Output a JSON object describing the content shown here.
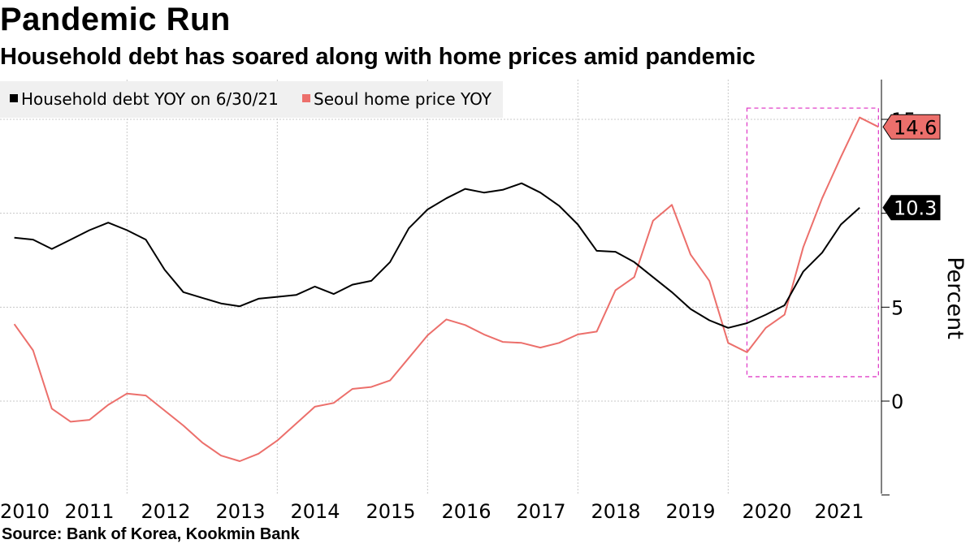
{
  "header": {
    "title": "Pandemic Run",
    "subtitle": "Household debt has soared along with home prices amid pandemic"
  },
  "footer": {
    "source": "Source: Bank of Korea, Kookmin Bank"
  },
  "colors": {
    "debt": "#000000",
    "seoul": "#ec6f6b",
    "highlight": "#e040c8",
    "grid": "#c8c8c8",
    "legend_bg": "#f0f0f0"
  },
  "chart_data": {
    "type": "line",
    "title": "Pandemic Run",
    "subtitle": "Household debt has soared along with home prices amid pandemic",
    "xlabel": "",
    "ylabel": "Percent",
    "ylim": [
      -5,
      17
    ],
    "xlim": [
      2010.0,
      2021.7
    ],
    "y_ticks": [
      0,
      5,
      10,
      15
    ],
    "x_ticks": [
      2010,
      2011,
      2012,
      2013,
      2014,
      2015,
      2016,
      2017,
      2018,
      2019,
      2020,
      2021
    ],
    "grid": true,
    "legend_position": "top-left",
    "series": [
      {
        "name": "Household debt YOY on 6/30/21",
        "color": "#000000",
        "last_value_label": "10.3",
        "points": [
          [
            2010.0,
            8.7
          ],
          [
            2010.25,
            8.6
          ],
          [
            2010.5,
            8.1
          ],
          [
            2010.75,
            8.6
          ],
          [
            2011.0,
            9.1
          ],
          [
            2011.25,
            9.5
          ],
          [
            2011.5,
            9.1
          ],
          [
            2011.75,
            8.6
          ],
          [
            2012.0,
            7.0
          ],
          [
            2012.25,
            5.8
          ],
          [
            2012.5,
            5.5
          ],
          [
            2012.75,
            5.2
          ],
          [
            2013.0,
            5.05
          ],
          [
            2013.25,
            5.45
          ],
          [
            2013.5,
            5.55
          ],
          [
            2013.75,
            5.65
          ],
          [
            2014.0,
            6.1
          ],
          [
            2014.25,
            5.7
          ],
          [
            2014.5,
            6.2
          ],
          [
            2014.75,
            6.4
          ],
          [
            2015.0,
            7.4
          ],
          [
            2015.25,
            9.2
          ],
          [
            2015.5,
            10.2
          ],
          [
            2015.75,
            10.8
          ],
          [
            2016.0,
            11.3
          ],
          [
            2016.25,
            11.1
          ],
          [
            2016.5,
            11.25
          ],
          [
            2016.75,
            11.6
          ],
          [
            2017.0,
            11.1
          ],
          [
            2017.25,
            10.4
          ],
          [
            2017.5,
            9.4
          ],
          [
            2017.75,
            8.0
          ],
          [
            2018.0,
            7.95
          ],
          [
            2018.25,
            7.4
          ],
          [
            2018.5,
            6.6
          ],
          [
            2018.75,
            5.8
          ],
          [
            2019.0,
            4.9
          ],
          [
            2019.25,
            4.3
          ],
          [
            2019.5,
            3.9
          ],
          [
            2019.75,
            4.15
          ],
          [
            2020.0,
            4.6
          ],
          [
            2020.25,
            5.1
          ],
          [
            2020.5,
            6.9
          ],
          [
            2020.75,
            7.9
          ],
          [
            2021.0,
            9.4
          ],
          [
            2021.25,
            10.3
          ]
        ]
      },
      {
        "name": "Seoul home price YOY",
        "color": "#ec6f6b",
        "last_value_label": "14.6",
        "points": [
          [
            2010.0,
            4.1
          ],
          [
            2010.25,
            2.7
          ],
          [
            2010.5,
            -0.4
          ],
          [
            2010.75,
            -1.1
          ],
          [
            2011.0,
            -1.0
          ],
          [
            2011.25,
            -0.2
          ],
          [
            2011.5,
            0.4
          ],
          [
            2011.75,
            0.3
          ],
          [
            2012.0,
            -0.5
          ],
          [
            2012.25,
            -1.3
          ],
          [
            2012.5,
            -2.2
          ],
          [
            2012.75,
            -2.9
          ],
          [
            2013.0,
            -3.2
          ],
          [
            2013.25,
            -2.8
          ],
          [
            2013.5,
            -2.1
          ],
          [
            2013.75,
            -1.2
          ],
          [
            2014.0,
            -0.3
          ],
          [
            2014.25,
            -0.1
          ],
          [
            2014.5,
            0.65
          ],
          [
            2014.75,
            0.75
          ],
          [
            2015.0,
            1.1
          ],
          [
            2015.25,
            2.3
          ],
          [
            2015.5,
            3.5
          ],
          [
            2015.75,
            4.35
          ],
          [
            2016.0,
            4.05
          ],
          [
            2016.25,
            3.55
          ],
          [
            2016.5,
            3.15
          ],
          [
            2016.75,
            3.1
          ],
          [
            2017.0,
            2.85
          ],
          [
            2017.25,
            3.1
          ],
          [
            2017.5,
            3.55
          ],
          [
            2017.75,
            3.7
          ],
          [
            2018.0,
            5.9
          ],
          [
            2018.25,
            6.6
          ],
          [
            2018.5,
            9.6
          ],
          [
            2018.75,
            10.45
          ],
          [
            2019.0,
            7.8
          ],
          [
            2019.25,
            6.4
          ],
          [
            2019.5,
            3.1
          ],
          [
            2019.75,
            2.6
          ],
          [
            2020.0,
            3.9
          ],
          [
            2020.25,
            4.6
          ],
          [
            2020.5,
            8.2
          ],
          [
            2020.75,
            10.8
          ],
          [
            2021.0,
            13.0
          ],
          [
            2021.25,
            15.1
          ],
          [
            2021.5,
            14.6
          ]
        ]
      }
    ],
    "highlight_box": {
      "x_range": [
        2019.75,
        2021.5
      ],
      "y_range": [
        1.3,
        15.6
      ]
    }
  }
}
